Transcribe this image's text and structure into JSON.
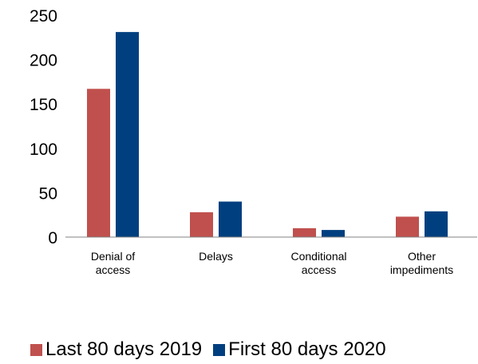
{
  "chart_data": {
    "type": "bar",
    "categories": [
      [
        "Denial of",
        "access"
      ],
      [
        "Delays"
      ],
      [
        "Conditional",
        "access"
      ],
      [
        "Other",
        "impediments"
      ]
    ],
    "series": [
      {
        "name": "Last 80 days 2019",
        "color": "#C0504D",
        "values": [
          167,
          28,
          10,
          23
        ]
      },
      {
        "name": "First 80 days 2020",
        "color": "#003F7F",
        "values": [
          231,
          40,
          8,
          29
        ]
      }
    ],
    "y_ticks": [
      "0",
      "50",
      "100",
      "150",
      "200",
      "250"
    ],
    "ylim": [
      0,
      250
    ],
    "grid": false,
    "legend_position": "bottom",
    "title": "",
    "xlabel": "",
    "ylabel": ""
  }
}
